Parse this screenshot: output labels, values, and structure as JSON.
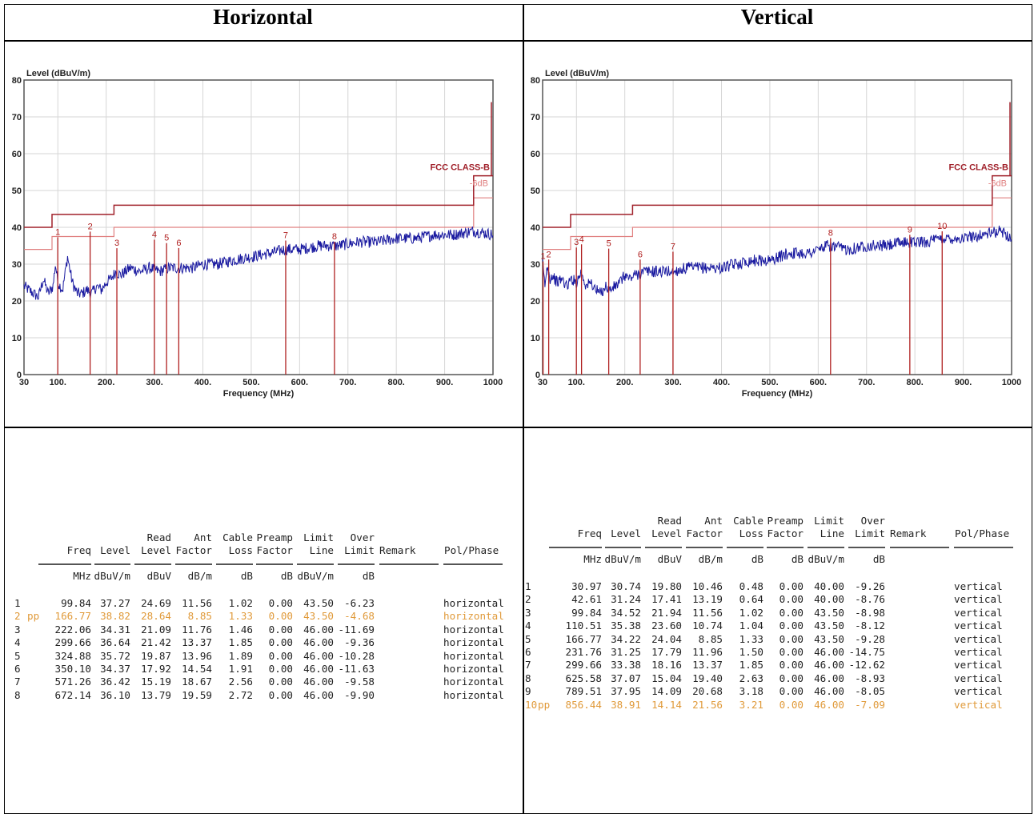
{
  "headers": {
    "left": "Horizontal",
    "right": "Vertical"
  },
  "chart_data": [
    {
      "type": "line",
      "ylabel": "Level (dBuV/m)",
      "xlabel": "Frequency (MHz)",
      "xlim": [
        30,
        1000
      ],
      "ylim": [
        0,
        80
      ],
      "xticks": [
        30,
        100,
        200,
        300,
        400,
        500,
        600,
        700,
        800,
        900,
        1000
      ],
      "xtick_labels": [
        "30",
        "100.",
        "200.",
        "300.",
        "400.",
        "500.",
        "600.",
        "700.",
        "800.",
        "900.",
        "1000"
      ],
      "yticks": [
        0,
        10,
        20,
        30,
        40,
        50,
        60,
        70,
        80
      ],
      "limit_label": "FCC CLASS-B",
      "margin_label": "-6dB",
      "limit_line": {
        "x": [
          30,
          88,
          88,
          216,
          216,
          960,
          960,
          1000
        ],
        "y": [
          40,
          40,
          43.5,
          43.5,
          46,
          46,
          54,
          54
        ]
      },
      "margin_line": {
        "x": [
          30,
          88,
          88,
          216,
          216,
          960,
          960,
          1000
        ],
        "y": [
          34,
          34,
          37.5,
          37.5,
          40,
          40,
          48,
          48
        ]
      },
      "trace_color": "#1a1aa0",
      "limit_color": "#a0202a",
      "margin_color": "#e08080",
      "marker_color": "#b02020",
      "trace_points": [
        [
          30,
          24
        ],
        [
          40,
          23
        ],
        [
          50,
          22
        ],
        [
          60,
          21
        ],
        [
          70,
          26
        ],
        [
          80,
          22
        ],
        [
          90,
          24
        ],
        [
          95,
          30
        ],
        [
          100,
          25
        ],
        [
          110,
          23
        ],
        [
          120,
          32
        ],
        [
          130,
          25
        ],
        [
          140,
          22
        ],
        [
          150,
          22
        ],
        [
          160,
          23
        ],
        [
          170,
          22
        ],
        [
          180,
          24
        ],
        [
          190,
          23
        ],
        [
          200,
          25
        ],
        [
          210,
          26
        ],
        [
          220,
          28
        ],
        [
          230,
          27
        ],
        [
          250,
          29
        ],
        [
          270,
          28
        ],
        [
          290,
          29
        ],
        [
          310,
          28
        ],
        [
          330,
          29
        ],
        [
          350,
          29
        ],
        [
          380,
          29
        ],
        [
          400,
          30
        ],
        [
          430,
          30
        ],
        [
          460,
          31
        ],
        [
          500,
          32
        ],
        [
          540,
          33
        ],
        [
          570,
          34
        ],
        [
          600,
          34
        ],
        [
          640,
          35
        ],
        [
          680,
          35
        ],
        [
          720,
          36
        ],
        [
          760,
          36
        ],
        [
          800,
          37
        ],
        [
          840,
          37
        ],
        [
          880,
          38
        ],
        [
          920,
          38
        ],
        [
          960,
          39
        ],
        [
          1000,
          38
        ]
      ],
      "markers": [
        {
          "label": "1",
          "x": 99.84,
          "y": 37.27
        },
        {
          "label": "2",
          "x": 166.77,
          "y": 38.82
        },
        {
          "label": "3",
          "x": 222.06,
          "y": 34.31
        },
        {
          "label": "4",
          "x": 299.66,
          "y": 36.64
        },
        {
          "label": "5",
          "x": 324.88,
          "y": 35.72
        },
        {
          "label": "6",
          "x": 350.1,
          "y": 34.37
        },
        {
          "label": "7",
          "x": 571.26,
          "y": 36.42
        },
        {
          "label": "8",
          "x": 672.14,
          "y": 36.1
        }
      ]
    },
    {
      "type": "line",
      "ylabel": "Level (dBuV/m)",
      "xlabel": "Frequency (MHz)",
      "xlim": [
        30,
        1000
      ],
      "ylim": [
        0,
        80
      ],
      "xticks": [
        30,
        100,
        200,
        300,
        400,
        500,
        600,
        700,
        800,
        900,
        1000
      ],
      "xtick_labels": [
        "30",
        "100.",
        "200.",
        "300.",
        "400.",
        "500.",
        "600.",
        "700.",
        "800.",
        "900.",
        "1000"
      ],
      "yticks": [
        0,
        10,
        20,
        30,
        40,
        50,
        60,
        70,
        80
      ],
      "limit_label": "FCC CLASS-B",
      "margin_label": "-6dB",
      "limit_line": {
        "x": [
          30,
          88,
          88,
          216,
          216,
          960,
          960,
          1000
        ],
        "y": [
          40,
          40,
          43.5,
          43.5,
          46,
          46,
          54,
          54
        ]
      },
      "margin_line": {
        "x": [
          30,
          88,
          88,
          216,
          216,
          960,
          960,
          1000
        ],
        "y": [
          34,
          34,
          37.5,
          37.5,
          40,
          40,
          48,
          48
        ]
      },
      "trace_color": "#1a1aa0",
      "limit_color": "#a0202a",
      "margin_color": "#e08080",
      "marker_color": "#b02020",
      "trace_points": [
        [
          30,
          30
        ],
        [
          35,
          24
        ],
        [
          40,
          30
        ],
        [
          45,
          26
        ],
        [
          50,
          27
        ],
        [
          60,
          25
        ],
        [
          70,
          26
        ],
        [
          80,
          24
        ],
        [
          90,
          26
        ],
        [
          100,
          25
        ],
        [
          110,
          28
        ],
        [
          120,
          24
        ],
        [
          130,
          25
        ],
        [
          140,
          23
        ],
        [
          150,
          22
        ],
        [
          160,
          24
        ],
        [
          170,
          23
        ],
        [
          180,
          24
        ],
        [
          190,
          25
        ],
        [
          200,
          27
        ],
        [
          210,
          26
        ],
        [
          220,
          27
        ],
        [
          240,
          28
        ],
        [
          260,
          28
        ],
        [
          280,
          28
        ],
        [
          300,
          28
        ],
        [
          330,
          29
        ],
        [
          360,
          29
        ],
        [
          400,
          29
        ],
        [
          430,
          30
        ],
        [
          460,
          31
        ],
        [
          500,
          31
        ],
        [
          540,
          33
        ],
        [
          580,
          33
        ],
        [
          620,
          35
        ],
        [
          660,
          34
        ],
        [
          700,
          35
        ],
        [
          740,
          35
        ],
        [
          780,
          36
        ],
        [
          820,
          36
        ],
        [
          860,
          37
        ],
        [
          900,
          37
        ],
        [
          940,
          38
        ],
        [
          980,
          39
        ],
        [
          1000,
          37
        ]
      ],
      "markers": [
        {
          "label": "1",
          "x": 30.97,
          "y": 30.74
        },
        {
          "label": "2",
          "x": 42.61,
          "y": 31.24
        },
        {
          "label": "3",
          "x": 99.84,
          "y": 34.52
        },
        {
          "label": "4",
          "x": 110.51,
          "y": 35.38
        },
        {
          "label": "5",
          "x": 166.77,
          "y": 34.22
        },
        {
          "label": "6",
          "x": 231.76,
          "y": 31.25
        },
        {
          "label": "7",
          "x": 299.66,
          "y": 33.38
        },
        {
          "label": "8",
          "x": 625.58,
          "y": 37.07
        },
        {
          "label": "9",
          "x": 789.51,
          "y": 37.95
        },
        {
          "label": "10",
          "x": 856.44,
          "y": 38.91
        }
      ]
    }
  ],
  "tables": {
    "columns": [
      {
        "h1": "",
        "h2": "Freq",
        "unit": "MHz"
      },
      {
        "h1": "",
        "h2": "Level",
        "unit": "dBuV/m"
      },
      {
        "h1": "Read",
        "h2": "Level",
        "unit": "dBuV"
      },
      {
        "h1": "Ant",
        "h2": "Factor",
        "unit": "dB/m"
      },
      {
        "h1": "Cable",
        "h2": "Loss",
        "unit": "dB"
      },
      {
        "h1": "Preamp",
        "h2": "Factor",
        "unit": "dB"
      },
      {
        "h1": "Limit",
        "h2": "Line",
        "unit": "dBuV/m"
      },
      {
        "h1": "Over",
        "h2": "Limit",
        "unit": "dB"
      },
      {
        "h1": "",
        "h2": "Remark",
        "unit": ""
      },
      {
        "h1": "",
        "h2": "Pol/Phase",
        "unit": ""
      }
    ],
    "horizontal": [
      {
        "id": "1",
        "mark": "",
        "vals": [
          "99.84",
          "37.27",
          "24.69",
          "11.56",
          "1.02",
          "0.00",
          "43.50",
          "-6.23"
        ],
        "pol": "horizontal",
        "hl": false
      },
      {
        "id": "2",
        "mark": "pp",
        "vals": [
          "166.77",
          "38.82",
          "28.64",
          "8.85",
          "1.33",
          "0.00",
          "43.50",
          "-4.68"
        ],
        "pol": "horizontal",
        "hl": true
      },
      {
        "id": "3",
        "mark": "",
        "vals": [
          "222.06",
          "34.31",
          "21.09",
          "11.76",
          "1.46",
          "0.00",
          "46.00",
          "-11.69"
        ],
        "pol": "horizontal",
        "hl": false
      },
      {
        "id": "4",
        "mark": "",
        "vals": [
          "299.66",
          "36.64",
          "21.42",
          "13.37",
          "1.85",
          "0.00",
          "46.00",
          "-9.36"
        ],
        "pol": "horizontal",
        "hl": false
      },
      {
        "id": "5",
        "mark": "",
        "vals": [
          "324.88",
          "35.72",
          "19.87",
          "13.96",
          "1.89",
          "0.00",
          "46.00",
          "-10.28"
        ],
        "pol": "horizontal",
        "hl": false
      },
      {
        "id": "6",
        "mark": "",
        "vals": [
          "350.10",
          "34.37",
          "17.92",
          "14.54",
          "1.91",
          "0.00",
          "46.00",
          "-11.63"
        ],
        "pol": "horizontal",
        "hl": false
      },
      {
        "id": "7",
        "mark": "",
        "vals": [
          "571.26",
          "36.42",
          "15.19",
          "18.67",
          "2.56",
          "0.00",
          "46.00",
          "-9.58"
        ],
        "pol": "horizontal",
        "hl": false
      },
      {
        "id": "8",
        "mark": "",
        "vals": [
          "672.14",
          "36.10",
          "13.79",
          "19.59",
          "2.72",
          "0.00",
          "46.00",
          "-9.90"
        ],
        "pol": "horizontal",
        "hl": false
      }
    ],
    "vertical": [
      {
        "id": "1",
        "mark": "",
        "vals": [
          "30.97",
          "30.74",
          "19.80",
          "10.46",
          "0.48",
          "0.00",
          "40.00",
          "-9.26"
        ],
        "pol": "vertical",
        "hl": false
      },
      {
        "id": "2",
        "mark": "",
        "vals": [
          "42.61",
          "31.24",
          "17.41",
          "13.19",
          "0.64",
          "0.00",
          "40.00",
          "-8.76"
        ],
        "pol": "vertical",
        "hl": false
      },
      {
        "id": "3",
        "mark": "",
        "vals": [
          "99.84",
          "34.52",
          "21.94",
          "11.56",
          "1.02",
          "0.00",
          "43.50",
          "-8.98"
        ],
        "pol": "vertical",
        "hl": false
      },
      {
        "id": "4",
        "mark": "",
        "vals": [
          "110.51",
          "35.38",
          "23.60",
          "10.74",
          "1.04",
          "0.00",
          "43.50",
          "-8.12"
        ],
        "pol": "vertical",
        "hl": false
      },
      {
        "id": "5",
        "mark": "",
        "vals": [
          "166.77",
          "34.22",
          "24.04",
          "8.85",
          "1.33",
          "0.00",
          "43.50",
          "-9.28"
        ],
        "pol": "vertical",
        "hl": false
      },
      {
        "id": "6",
        "mark": "",
        "vals": [
          "231.76",
          "31.25",
          "17.79",
          "11.96",
          "1.50",
          "0.00",
          "46.00",
          "-14.75"
        ],
        "pol": "vertical",
        "hl": false
      },
      {
        "id": "7",
        "mark": "",
        "vals": [
          "299.66",
          "33.38",
          "18.16",
          "13.37",
          "1.85",
          "0.00",
          "46.00",
          "-12.62"
        ],
        "pol": "vertical",
        "hl": false
      },
      {
        "id": "8",
        "mark": "",
        "vals": [
          "625.58",
          "37.07",
          "15.04",
          "19.40",
          "2.63",
          "0.00",
          "46.00",
          "-8.93"
        ],
        "pol": "vertical",
        "hl": false
      },
      {
        "id": "9",
        "mark": "",
        "vals": [
          "789.51",
          "37.95",
          "14.09",
          "20.68",
          "3.18",
          "0.00",
          "46.00",
          "-8.05"
        ],
        "pol": "vertical",
        "hl": false
      },
      {
        "id": "10",
        "mark": "pp",
        "vals": [
          "856.44",
          "38.91",
          "14.14",
          "21.56",
          "3.21",
          "0.00",
          "46.00",
          "-7.09"
        ],
        "pol": "vertical",
        "hl": true
      }
    ],
    "highlight_color": "#e09a3a"
  }
}
